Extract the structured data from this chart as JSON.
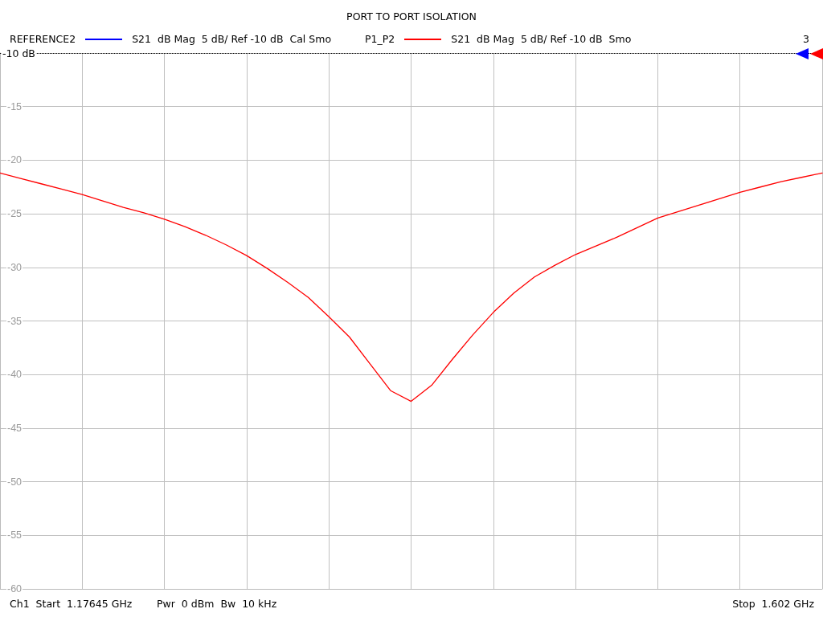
{
  "chart_data": {
    "type": "line",
    "title": "PORT TO PORT ISOLATION",
    "annotations": [
      "REFERENCE2",
      "P1_P2",
      "3",
      "Ch1  Start  1.17645 GHz",
      "Pwr  0 dBm  Bw  10 kHz",
      "Stop  1.602 GHz"
    ],
    "categories": [
      null,
      null,
      null,
      null,
      null,
      null,
      null,
      null,
      null,
      null,
      null,
      null,
      null,
      null,
      null,
      null,
      null,
      null,
      null,
      null,
      null,
      null,
      null,
      null,
      null,
      null,
      null,
      null,
      null,
      null,
      null,
      null,
      null,
      null,
      null,
      null,
      null,
      null,
      null,
      null,
      null
    ],
    "series": [
      {
        "name": "S21  dB Mag  5 dB/ Ref -10 dB  Cal Smo",
        "color": "#0000ff",
        "values": [
          null,
          null,
          null,
          null,
          null,
          null,
          null,
          null,
          null,
          null,
          null,
          null,
          null,
          null,
          null,
          null,
          null,
          null,
          null,
          null,
          null,
          null,
          null,
          null,
          null,
          null,
          null,
          null,
          null,
          null,
          null,
          null,
          null,
          null,
          null,
          null,
          null,
          null,
          null,
          null,
          null
        ]
      },
      {
        "name": "S21  dB Mag  5 dB/ Ref -10 dB  Smo",
        "color": "#ff0000",
        "values": [
          -21.2,
          -21.7,
          -22.2,
          -22.7,
          -23.2,
          -23.8,
          -24.4,
          -24.9,
          -25.5,
          -26.2,
          -27.0,
          -27.9,
          -28.9,
          -30.1,
          -31.4,
          -32.8,
          -34.6,
          -36.5,
          -39.0,
          -41.5,
          -42.5,
          -41.0,
          -38.6,
          -36.3,
          -34.2,
          -32.4,
          -30.9,
          -29.8,
          -28.8,
          -28.0,
          -27.2,
          -26.3,
          -25.4,
          -24.8,
          -24.2,
          -23.6,
          -23.0,
          -22.5,
          -22.0,
          -21.6,
          -21.2
        ]
      }
    ],
    "ylim": [
      -60,
      -10
    ],
    "yticks": [
      {
        "value": -10,
        "label": null
      },
      -15,
      -20,
      -25,
      -30,
      -35,
      -40,
      -45,
      -50,
      -55,
      -60
    ],
    "ref_lines": [
      {
        "axis": "y",
        "value": -10,
        "label": "-10 dB",
        "color": "#000000",
        "line_style": "dotted"
      }
    ],
    "grid": true,
    "legend": "top left",
    "marker": "none",
    "line_style": "solid",
    "tick_labels": "y"
  }
}
